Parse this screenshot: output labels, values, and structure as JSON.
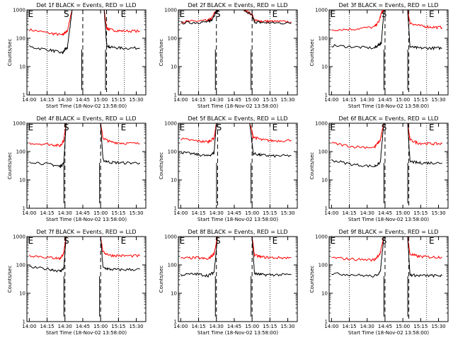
{
  "chart_data": [
    {
      "type": "line",
      "title": "Det 1f BLACK = Events, RED = LLD",
      "xlabel": "Start Time (18-Nov-02 13:58:00)",
      "ylabel": "Counts/sec",
      "xticks": [
        "14:00",
        "14:15",
        "14:30",
        "14:45",
        "15:00",
        "15:15",
        "15:30"
      ],
      "yticks": [
        "1",
        "10",
        "100",
        "1000"
      ],
      "yscale": "log",
      "ylim": [
        1,
        1000
      ],
      "xlim_minutes": [
        0,
        100
      ],
      "event_markers": [
        "E",
        "S",
        "E"
      ],
      "marker_minutes": [
        2,
        32,
        65,
        80
      ],
      "dashed_minutes": [
        47,
        67
      ],
      "dotted_minutes": [
        17,
        82
      ],
      "series": [
        {
          "name": "RED = LLD",
          "color": "#ff0000",
          "x": [
            2,
            20,
            30,
            32,
            34,
            38,
            46,
            65,
            67,
            70,
            80,
            95
          ],
          "y": [
            200,
            150,
            130,
            160,
            180,
            1000,
            1000,
            1000,
            230,
            200,
            180,
            180
          ]
        },
        {
          "name": "BLACK = Events",
          "color": "#000000",
          "x": [
            2,
            20,
            30,
            32,
            34,
            38,
            46,
            65,
            67,
            70,
            80,
            95
          ],
          "y": [
            50,
            38,
            30,
            40,
            45,
            1000,
            1000,
            1000,
            60,
            48,
            45,
            45
          ]
        }
      ]
    },
    {
      "type": "line",
      "title": "Det 2f BLACK = Events, RED = LLD",
      "xlabel": "Start Time (18-Nov-02 13:58:00)",
      "ylabel": "Counts/sec",
      "xticks": [
        "14:00",
        "14:15",
        "14:30",
        "14:45",
        "15:00",
        "15:15",
        "15:30"
      ],
      "yticks": [
        "1",
        "10",
        "100",
        "1000"
      ],
      "yscale": "log",
      "ylim": [
        1,
        1000
      ],
      "xlim_minutes": [
        0,
        100
      ],
      "event_markers": [
        "E",
        "S",
        "E"
      ],
      "marker_minutes": [
        2,
        32,
        65,
        80
      ],
      "dashed_minutes": [
        32,
        62
      ],
      "dotted_minutes": [
        17,
        77
      ],
      "series": [
        {
          "name": "RED = LLD",
          "color": "#ff0000",
          "x": [
            2,
            15,
            25,
            28,
            32,
            34,
            38,
            46,
            55,
            62,
            64,
            70,
            80,
            95
          ],
          "y": [
            380,
            400,
            420,
            500,
            1000,
            1000,
            1000,
            1000,
            1000,
            700,
            420,
            400,
            390,
            380
          ]
        },
        {
          "name": "BLACK = Events",
          "color": "#000000",
          "x": [
            2,
            15,
            25,
            28,
            32,
            34,
            38,
            46,
            55,
            62,
            64,
            70,
            80,
            95
          ],
          "y": [
            350,
            360,
            380,
            450,
            900,
            1000,
            1000,
            1000,
            1000,
            620,
            380,
            360,
            350,
            340
          ]
        }
      ]
    },
    {
      "type": "line",
      "title": "Det 3f BLACK = Events, RED = LLD",
      "xlabel": "Start Time (18-Nov-02 13:58:00)",
      "ylabel": "Counts/sec",
      "xticks": [
        "14:00",
        "14:15",
        "14:30",
        "14:45",
        "15:00",
        "15:15",
        "15:30"
      ],
      "yticks": [
        "1",
        "10",
        "100",
        "1000"
      ],
      "yscale": "log",
      "ylim": [
        1,
        1000
      ],
      "xlim_minutes": [
        0,
        100
      ],
      "event_markers": [
        "E",
        "S",
        "E"
      ],
      "marker_minutes": [
        2,
        45,
        70,
        85
      ],
      "dashed_minutes": [
        47,
        67
      ],
      "dotted_minutes": [
        17,
        82
      ],
      "series": [
        {
          "name": "RED = LLD",
          "color": "#ff0000",
          "x": [
            2,
            20,
            38,
            42,
            44,
            46,
            60,
            66,
            68,
            75,
            85,
            95
          ],
          "y": [
            200,
            210,
            250,
            400,
            800,
            1000,
            1000,
            1000,
            350,
            280,
            250,
            240
          ]
        },
        {
          "name": "BLACK = Events",
          "color": "#000000",
          "x": [
            2,
            20,
            38,
            42,
            44,
            46,
            60,
            66,
            68,
            75,
            85,
            95
          ],
          "y": [
            55,
            50,
            45,
            60,
            70,
            1000,
            1000,
            1000,
            50,
            45,
            45,
            45
          ]
        }
      ]
    },
    {
      "type": "line",
      "title": "Det 4f BLACK = Events, RED = LLD",
      "xlabel": "Start Time (18-Nov-02 13:58:00)",
      "ylabel": "Counts/sec",
      "xticks": [
        "14:00",
        "14:15",
        "14:30",
        "14:45",
        "15:00",
        "15:15",
        "15:30"
      ],
      "yticks": [
        "1",
        "10",
        "100",
        "1000"
      ],
      "yscale": "log",
      "ylim": [
        1,
        1000
      ],
      "xlim_minutes": [
        0,
        100
      ],
      "event_markers": [
        "E",
        "S",
        "E"
      ],
      "marker_minutes": [
        2,
        32,
        65,
        80
      ],
      "dashed_minutes": [
        32,
        62
      ],
      "dotted_minutes": [
        17,
        77
      ],
      "series": [
        {
          "name": "RED = LLD",
          "color": "#ff0000",
          "x": [
            2,
            20,
            28,
            31,
            33,
            46,
            62,
            64,
            70,
            80,
            95
          ],
          "y": [
            200,
            180,
            160,
            250,
            1000,
            1000,
            1000,
            300,
            220,
            200,
            190
          ]
        },
        {
          "name": "BLACK = Events",
          "color": "#000000",
          "x": [
            2,
            20,
            28,
            31,
            33,
            46,
            62,
            64,
            70,
            80,
            95
          ],
          "y": [
            45,
            35,
            30,
            40,
            1000,
            1000,
            1000,
            50,
            42,
            40,
            40
          ]
        }
      ]
    },
    {
      "type": "line",
      "title": "Det 5f BLACK = Events, RED = LLD",
      "xlabel": "Start Time (18-Nov-02 13:58:00)",
      "ylabel": "Counts/sec",
      "xticks": [
        "14:00",
        "14:15",
        "14:30",
        "14:45",
        "15:00",
        "15:15",
        "15:30"
      ],
      "yticks": [
        "1",
        "10",
        "100",
        "1000"
      ],
      "yscale": "log",
      "ylim": [
        1,
        1000
      ],
      "xlim_minutes": [
        0,
        100
      ],
      "event_markers": [
        "E",
        "S",
        "E"
      ],
      "marker_minutes": [
        2,
        33,
        62,
        80
      ],
      "dashed_minutes": [
        33,
        62
      ],
      "dotted_minutes": [
        17,
        77
      ],
      "series": [
        {
          "name": "RED = LLD",
          "color": "#ff0000",
          "x": [
            2,
            15,
            25,
            30,
            32,
            46,
            60,
            63,
            70,
            80,
            95
          ],
          "y": [
            280,
            240,
            220,
            300,
            1000,
            1000,
            1000,
            330,
            260,
            240,
            250
          ]
        },
        {
          "name": "BLACK = Events",
          "color": "#000000",
          "x": [
            2,
            15,
            25,
            30,
            32,
            46,
            60,
            63,
            70,
            80,
            95
          ],
          "y": [
            95,
            80,
            70,
            90,
            1000,
            1000,
            1000,
            85,
            75,
            70,
            72
          ]
        }
      ]
    },
    {
      "type": "line",
      "title": "Det 6f BLACK = Events, RED = LLD",
      "xlabel": "Start Time (18-Nov-02 13:58:00)",
      "ylabel": "Counts/sec",
      "xticks": [
        "14:00",
        "14:15",
        "14:30",
        "14:45",
        "15:00",
        "15:15",
        "15:30"
      ],
      "yticks": [
        "1",
        "10",
        "100",
        "1000"
      ],
      "yscale": "log",
      "ylim": [
        1,
        1000
      ],
      "xlim_minutes": [
        0,
        100
      ],
      "event_markers": [
        "E",
        "S",
        "E"
      ],
      "marker_minutes": [
        2,
        45,
        70,
        85
      ],
      "dashed_minutes": [
        47,
        67
      ],
      "dotted_minutes": [
        17,
        82
      ],
      "series": [
        {
          "name": "RED = LLD",
          "color": "#ff0000",
          "x": [
            2,
            20,
            38,
            43,
            46,
            60,
            66,
            68,
            75,
            85,
            95
          ],
          "y": [
            200,
            150,
            140,
            250,
            1000,
            1000,
            1000,
            260,
            200,
            190,
            190
          ]
        },
        {
          "name": "BLACK = Events",
          "color": "#000000",
          "x": [
            2,
            20,
            38,
            43,
            46,
            60,
            66,
            68,
            75,
            85,
            95
          ],
          "y": [
            50,
            35,
            30,
            40,
            1000,
            1000,
            1000,
            45,
            40,
            40,
            40
          ]
        }
      ]
    },
    {
      "type": "line",
      "title": "Det 7f BLACK = Events, RED = LLD",
      "xlabel": "Start Time (18-Nov-02 13:58:00)",
      "ylabel": "Counts/sec",
      "xticks": [
        "14:00",
        "14:15",
        "14:30",
        "14:45",
        "15:00",
        "15:15",
        "15:30"
      ],
      "yticks": [
        "1",
        "10",
        "100",
        "1000"
      ],
      "yscale": "log",
      "ylim": [
        1,
        1000
      ],
      "xlim_minutes": [
        0,
        100
      ],
      "event_markers": [
        "E",
        "S",
        "E"
      ],
      "marker_minutes": [
        2,
        32,
        65,
        80
      ],
      "dashed_minutes": [
        32,
        62
      ],
      "dotted_minutes": [
        17,
        77
      ],
      "series": [
        {
          "name": "RED = LLD",
          "color": "#ff0000",
          "x": [
            2,
            20,
            28,
            31,
            33,
            46,
            62,
            64,
            70,
            80,
            95
          ],
          "y": [
            220,
            180,
            170,
            260,
            1000,
            1000,
            1000,
            280,
            220,
            210,
            210
          ]
        },
        {
          "name": "BLACK = Events",
          "color": "#000000",
          "x": [
            2,
            20,
            28,
            31,
            33,
            46,
            62,
            64,
            70,
            80,
            95
          ],
          "y": [
            85,
            70,
            60,
            75,
            1000,
            1000,
            1000,
            80,
            70,
            68,
            70
          ]
        }
      ]
    },
    {
      "type": "line",
      "title": "Det 8f BLACK = Events, RED = LLD",
      "xlabel": "Start Time (18-Nov-02 13:58:00)",
      "ylabel": "Counts/sec",
      "xticks": [
        "14:00",
        "14:15",
        "14:30",
        "14:45",
        "15:00",
        "15:15",
        "15:30"
      ],
      "yticks": [
        "1",
        "10",
        "100",
        "1000"
      ],
      "yscale": "log",
      "ylim": [
        1,
        1000
      ],
      "xlim_minutes": [
        0,
        100
      ],
      "event_markers": [
        "E",
        "S",
        "E"
      ],
      "marker_minutes": [
        2,
        32,
        65,
        80
      ],
      "dashed_minutes": [
        32,
        62
      ],
      "dotted_minutes": [
        17,
        77
      ],
      "series": [
        {
          "name": "RED = LLD",
          "color": "#ff0000",
          "x": [
            2,
            15,
            25,
            30,
            33,
            46,
            62,
            64,
            70,
            80,
            95
          ],
          "y": [
            170,
            180,
            160,
            250,
            1000,
            1000,
            1000,
            220,
            190,
            180,
            180
          ]
        },
        {
          "name": "BLACK = Events",
          "color": "#000000",
          "x": [
            2,
            15,
            25,
            30,
            33,
            46,
            62,
            64,
            70,
            80,
            95
          ],
          "y": [
            45,
            48,
            42,
            55,
            1000,
            1000,
            1000,
            50,
            45,
            45,
            45
          ]
        }
      ]
    },
    {
      "type": "line",
      "title": "Det 9f BLACK = Events, RED = LLD",
      "xlabel": "Start Time (18-Nov-02 13:58:00)",
      "ylabel": "Counts/sec",
      "xticks": [
        "14:00",
        "14:15",
        "14:30",
        "14:45",
        "15:00",
        "15:15",
        "15:30"
      ],
      "yticks": [
        "1",
        "10",
        "100",
        "1000"
      ],
      "yscale": "log",
      "ylim": [
        1,
        1000
      ],
      "xlim_minutes": [
        0,
        100
      ],
      "event_markers": [
        "E",
        "S",
        "E"
      ],
      "marker_minutes": [
        2,
        45,
        70,
        85
      ],
      "dashed_minutes": [
        47,
        67
      ],
      "dotted_minutes": [
        17,
        82
      ],
      "series": [
        {
          "name": "RED = LLD",
          "color": "#ff0000",
          "x": [
            2,
            20,
            38,
            43,
            46,
            60,
            66,
            68,
            75,
            85,
            95
          ],
          "y": [
            180,
            160,
            150,
            260,
            1000,
            1000,
            1000,
            240,
            200,
            190,
            190
          ]
        },
        {
          "name": "BLACK = Events",
          "color": "#000000",
          "x": [
            2,
            20,
            38,
            43,
            46,
            60,
            66,
            68,
            75,
            85,
            95
          ],
          "y": [
            50,
            45,
            40,
            55,
            1000,
            1000,
            1000,
            45,
            42,
            42,
            42
          ]
        }
      ]
    }
  ]
}
